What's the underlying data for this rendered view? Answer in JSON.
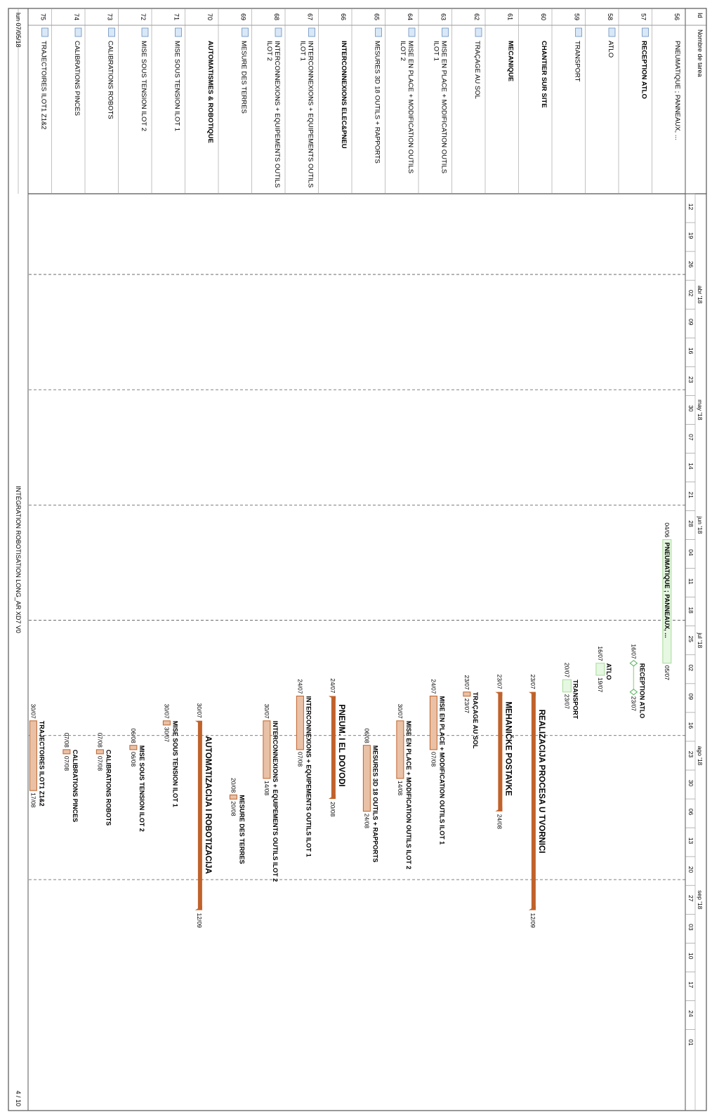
{
  "header": {
    "col_id": "Id",
    "col_name": "Nombre de tarea",
    "months": [
      {
        "label": "abr '18",
        "week_start": 3
      },
      {
        "label": "may '18",
        "week_start": 7
      },
      {
        "label": "jun '18",
        "week_start": 11
      },
      {
        "label": "jul '18",
        "week_start": 15
      },
      {
        "label": "ago '18",
        "week_start": 19
      },
      {
        "label": "sep '18",
        "week_start": 24
      }
    ],
    "weeks": [
      "12",
      "19",
      "26",
      "02",
      "09",
      "16",
      "23",
      "30",
      "07",
      "14",
      "21",
      "28",
      "04",
      "11",
      "18",
      "25",
      "02",
      "09",
      "16",
      "23",
      "30",
      "06",
      "13",
      "20",
      "27",
      "03",
      "10",
      "17",
      "24",
      "01"
    ]
  },
  "tasks": [
    {
      "id": "56",
      "name": "PNEUMATIQUE ; PANNEAUX, ...",
      "bold": false,
      "icon": false
    },
    {
      "id": "57",
      "name": "RECEPTION ATLO",
      "bold": true,
      "icon": true
    },
    {
      "id": "58",
      "name": "ATLO",
      "bold": false,
      "icon": true
    },
    {
      "id": "59",
      "name": "TRANSPORT",
      "bold": false,
      "icon": true
    },
    {
      "id": "60",
      "name": "CHANTIER SUR SITE",
      "bold": true,
      "icon": false
    },
    {
      "id": "61",
      "name": "MECANIQUE",
      "bold": true,
      "icon": false
    },
    {
      "id": "62",
      "name": "TRAÇAGE AU SOL",
      "bold": false,
      "icon": true
    },
    {
      "id": "63",
      "name": "MISE EN PLACE + MODIFICATION OUTILS ILOT 1",
      "bold": false,
      "icon": true
    },
    {
      "id": "64",
      "name": "MISE EN PLACE + MODIFICATION OUTILS ILOT 2",
      "bold": false,
      "icon": true
    },
    {
      "id": "65",
      "name": "MESURES 3D 18 OUTILS + RAPPORTS",
      "bold": false,
      "icon": true
    },
    {
      "id": "66",
      "name": "INTERCONNEXIONS ELEC&PNEU",
      "bold": true,
      "icon": false
    },
    {
      "id": "67",
      "name": "INTERCONNEXIONS + EQUIPEMENTS OUTILS ILOT 1",
      "bold": false,
      "icon": true
    },
    {
      "id": "68",
      "name": "INTERCONNEXIONS + EQUIPEMENTS OUTILS ILOT 2",
      "bold": false,
      "icon": true
    },
    {
      "id": "69",
      "name": "MESURE DES TERRES",
      "bold": false,
      "icon": true
    },
    {
      "id": "70",
      "name": "AUTOMATISMES & ROBOTIQUE",
      "bold": true,
      "icon": false
    },
    {
      "id": "71",
      "name": "MISE SOUS TENSION ILOT 1",
      "bold": false,
      "icon": true
    },
    {
      "id": "72",
      "name": "MISE SOUS TENSION ILOT 2",
      "bold": false,
      "icon": true
    },
    {
      "id": "73",
      "name": "CALIBRATIONS ROBOTS",
      "bold": false,
      "icon": true
    },
    {
      "id": "74",
      "name": "CALIBRATIONS PINCES",
      "bold": false,
      "icon": true
    },
    {
      "id": "75",
      "name": "TRAJECTOIRES ILOT1 Z1&2",
      "bold": false,
      "icon": true
    }
  ],
  "bars": [
    {
      "row": 0,
      "kind": "green",
      "start": 12.0,
      "end": 16.29,
      "label": "PNEUMATIQUE ; PANNEAUX, ...",
      "start_date": "04/06",
      "end_date": "05/07"
    },
    {
      "row": 1,
      "kind": "green-summary",
      "start": 16.29,
      "end": 17.29,
      "label": "RECEPTION ATLO",
      "start_date": "16/07",
      "end_date": "23/07"
    },
    {
      "row": 2,
      "kind": "green",
      "start": 16.29,
      "end": 16.71,
      "label": "ATLO",
      "start_date": "16/07",
      "end_date": "19/07"
    },
    {
      "row": 3,
      "kind": "green",
      "start": 16.86,
      "end": 17.29,
      "label": "TRANSPORT",
      "start_date": "20/07",
      "end_date": "23/07"
    },
    {
      "row": 4,
      "kind": "summary",
      "start": 17.29,
      "end": 24.86,
      "label": "REALIZACIJA PROCESA U TVORNICI",
      "start_date": "23/07",
      "end_date": "12/09"
    },
    {
      "row": 5,
      "kind": "summary",
      "start": 17.29,
      "end": 21.43,
      "label": "MEHANIČKE POSTAVKE",
      "start_date": "23/07",
      "end_date": "24/08"
    },
    {
      "row": 6,
      "kind": "task",
      "start": 17.29,
      "end": 17.43,
      "label": "TRAÇAGE AU SOL",
      "start_date": "23/07",
      "end_date": "23/07"
    },
    {
      "row": 7,
      "kind": "task",
      "start": 17.43,
      "end": 19.29,
      "label": "MISE EN PLACE + MODIFICATION OUTILS ILOT 1",
      "start_date": "24/07",
      "end_date": "07/08"
    },
    {
      "row": 8,
      "kind": "task",
      "start": 18.29,
      "end": 20.29,
      "label": "MISE EN PLACE + MODIFICATION OUTILS ILOT 2",
      "start_date": "30/07",
      "end_date": "14/08"
    },
    {
      "row": 9,
      "kind": "task",
      "start": 19.14,
      "end": 21.43,
      "label": "MESURES 3D 18 OUTILS + RAPPORTS",
      "start_date": "06/08",
      "end_date": "24/08"
    },
    {
      "row": 10,
      "kind": "summary",
      "start": 17.43,
      "end": 21.0,
      "label": "PNEUM. I EL DOVODI",
      "start_date": "24/07",
      "end_date": "20/08"
    },
    {
      "row": 11,
      "kind": "task",
      "start": 17.43,
      "end": 19.29,
      "label": "INTERCONNEXIONS + EQUIPEMENTS OUTILS ILOT 1",
      "start_date": "24/07",
      "end_date": "07/08"
    },
    {
      "row": 12,
      "kind": "task",
      "start": 18.29,
      "end": 20.29,
      "label": "INTERCONNEXIONS + EQUIPEMENTS OUTILS ILOT 2",
      "start_date": "30/07",
      "end_date": "14/08"
    },
    {
      "row": 13,
      "kind": "task",
      "start": 20.86,
      "end": 21.0,
      "label": "MESURE DES TERRES",
      "start_date": "20/08",
      "end_date": "20/08"
    },
    {
      "row": 14,
      "kind": "summary",
      "start": 18.29,
      "end": 24.86,
      "label": "AUTOMATIZACIJA I ROBOTIZACIJA",
      "start_date": "30/07",
      "end_date": "12/09"
    },
    {
      "row": 15,
      "kind": "task",
      "start": 18.29,
      "end": 18.43,
      "label": "MISE SOUS TENSION ILOT 1",
      "start_date": "30/07",
      "end_date": "30/07"
    },
    {
      "row": 16,
      "kind": "task",
      "start": 19.14,
      "end": 19.29,
      "label": "MISE SOUS TENSION ILOT 2",
      "start_date": "06/08",
      "end_date": "06/08"
    },
    {
      "row": 17,
      "kind": "task",
      "start": 19.29,
      "end": 19.43,
      "label": "CALIBRATIONS ROBOTS",
      "start_date": "07/08",
      "end_date": "07/08"
    },
    {
      "row": 18,
      "kind": "task",
      "start": 19.29,
      "end": 19.43,
      "label": "CALIBRATIONS PINCES",
      "start_date": "07/08",
      "end_date": "07/08"
    },
    {
      "row": 19,
      "kind": "task",
      "start": 18.29,
      "end": 20.71,
      "label": "TRAJECTOIRES ILOT1 Z1&2",
      "start_date": "30/07",
      "end_date": "17/08"
    }
  ],
  "footer": {
    "date": "lun 07/05/18",
    "project": "INTÉGRATION ROBOTISATION LONG_AR XD7 V0",
    "page": "4 / 10"
  },
  "colors": {
    "task_fill": "#e9c1a6",
    "task_stroke": "#c0622b",
    "summary": "#c0622b",
    "green_fill": "#e6f7e2",
    "green_stroke": "#a7dc98",
    "grid": "#555555"
  }
}
